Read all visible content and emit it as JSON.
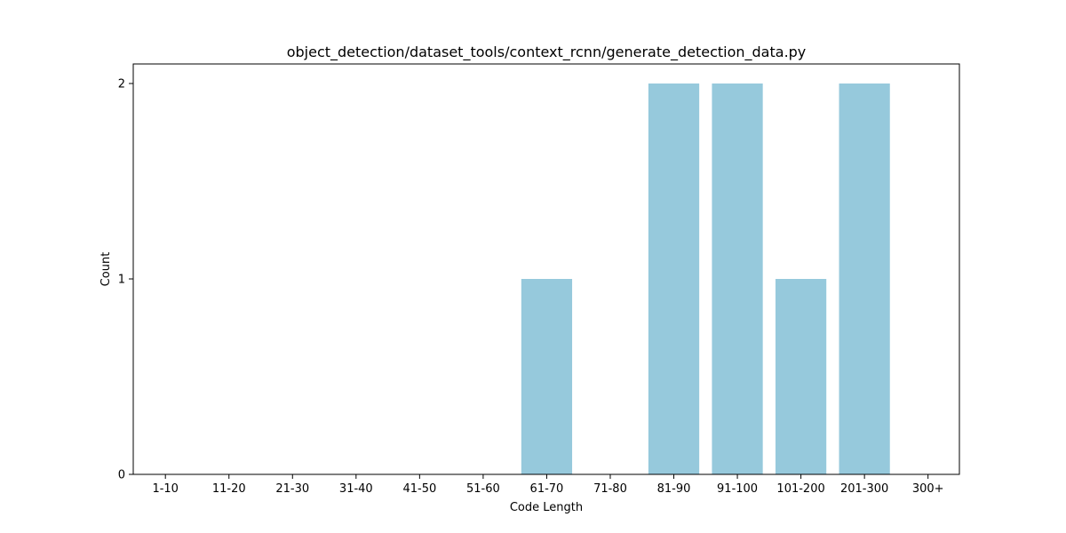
{
  "chart_data": {
    "type": "bar",
    "title": "object_detection/dataset_tools/context_rcnn/generate_detection_data.py",
    "xlabel": "Code Length",
    "ylabel": "Count",
    "categories": [
      "1-10",
      "11-20",
      "21-30",
      "31-40",
      "41-50",
      "51-60",
      "61-70",
      "71-80",
      "81-90",
      "91-100",
      "101-200",
      "201-300",
      "300+"
    ],
    "values": [
      0,
      0,
      0,
      0,
      0,
      0,
      1,
      0,
      2,
      2,
      1,
      2,
      0
    ],
    "ylim": [
      0,
      2.1
    ],
    "yticks": [
      0,
      1,
      2
    ],
    "grid": false,
    "bar_color": "#96c9dc",
    "axis_color": "#000000",
    "background": "#ffffff"
  }
}
